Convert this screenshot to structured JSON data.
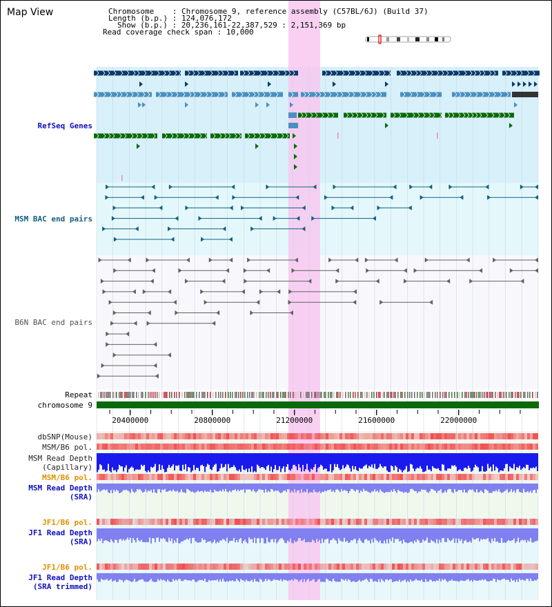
{
  "view_title": "Map View",
  "header": {
    "chromosome_label": "Chromosome",
    "chromosome_value": "Chromosome 9, reference assembly (C57BL/6J) (Build 37)",
    "length_label": "Length (b.p.)",
    "length_value": "124,076,172",
    "show_label": "Show (b.p.)",
    "show_value": "20,236,161-22,387,529 : 2,151,369 bp",
    "coverage_label": "Read coverage check span",
    "coverage_value": "10,000"
  },
  "tracks": {
    "refseq": "RefSeq Genes",
    "msm_bac": "MSM BAC end pairs",
    "b6n_bac": "B6N BAC end pairs",
    "repeat": "Repeat",
    "chromosome": "chromosome 9",
    "dbsnp": "dbSNP(Mouse)",
    "msm_pol_1": "MSM/B6 pol.",
    "msm_depth_cap_1": "MSM Read Depth",
    "msm_depth_cap_2": "(Capillary)",
    "msm_pol_2": "MSM/B6 pol.",
    "msm_depth_sra_1": "MSM Read Depth",
    "msm_depth_sra_2": "(SRA)",
    "jf1_pol_1": "JF1/B6 pol.",
    "jf1_depth_sra_1": "JF1 Read Depth",
    "jf1_depth_sra_2": "(SRA)",
    "jf1_pol_2": "JF1/B6 pol.",
    "jf1_depth_trim_1": "JF1 Read Depth",
    "jf1_depth_trim_2": "(SRA trimmed)"
  },
  "axis": {
    "ticks": [
      {
        "label": "20400000",
        "pos": 20400000
      },
      {
        "label": "20800000",
        "pos": 20800000
      },
      {
        "label": "21200000",
        "pos": 21200000
      },
      {
        "label": "21600000",
        "pos": 21600000
      },
      {
        "label": "22000000",
        "pos": 22000000
      }
    ],
    "range_start": 20236161,
    "range_end": 22387529,
    "highlight_start": 21170000,
    "highlight_end": 21325000
  },
  "colors": {
    "refseq_dark": "#0a3a6a",
    "refseq_mid": "#4a90c0",
    "refseq_green": "#0a6a0a",
    "msm_line": "#106080",
    "b6n_line": "#606060",
    "chromosome_bar": "#0a6a0a",
    "highlight": "#f8c8f0",
    "depth_blue": "#1a1aee",
    "depth_lightblue": "#8080f0",
    "snp_red": "#f05050"
  }
}
